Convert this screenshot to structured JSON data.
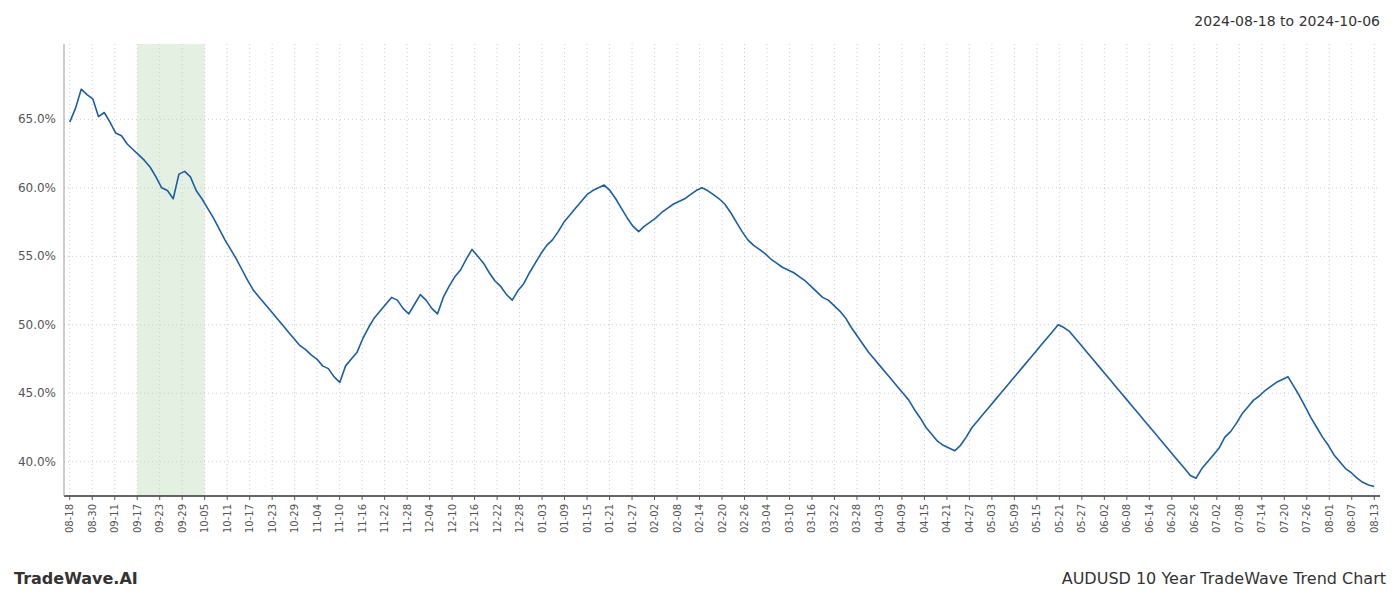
{
  "chart_data": {
    "type": "line",
    "title": "2024-08-18 to 2024-10-06",
    "annotations": [
      "TradeWave.AI",
      "AUDUSD 10 Year TradeWave Trend Chart"
    ],
    "color": "#1b5ea6",
    "grid": true,
    "ylim": [
      0.375,
      0.705
    ],
    "yticks": [
      {
        "value": 0.4,
        "label": "40.0%"
      },
      {
        "value": 0.45,
        "label": "45.0%"
      },
      {
        "value": 0.5,
        "label": "50.0%"
      },
      {
        "value": 0.55,
        "label": "55.0%"
      },
      {
        "value": 0.6,
        "label": "60.0%"
      },
      {
        "value": 0.65,
        "label": "65.0%"
      }
    ],
    "xlim": [
      -1,
      228
    ],
    "xticks": [
      {
        "value": 0,
        "label": "08-18"
      },
      {
        "value": 3.914,
        "label": "08-30"
      },
      {
        "value": 7.828,
        "label": "09-11"
      },
      {
        "value": 11.741,
        "label": "09-17"
      },
      {
        "value": 15.655,
        "label": "09-23"
      },
      {
        "value": 19.569,
        "label": "09-29"
      },
      {
        "value": 23.483,
        "label": "10-05"
      },
      {
        "value": 27.397,
        "label": "10-11"
      },
      {
        "value": 31.31,
        "label": "10-17"
      },
      {
        "value": 35.224,
        "label": "10-23"
      },
      {
        "value": 39.138,
        "label": "10-29"
      },
      {
        "value": 43.052,
        "label": "11-04"
      },
      {
        "value": 46.966,
        "label": "11-10"
      },
      {
        "value": 50.879,
        "label": "11-16"
      },
      {
        "value": 54.793,
        "label": "11-22"
      },
      {
        "value": 58.707,
        "label": "11-28"
      },
      {
        "value": 62.621,
        "label": "12-04"
      },
      {
        "value": 66.534,
        "label": "12-10"
      },
      {
        "value": 70.448,
        "label": "12-16"
      },
      {
        "value": 74.362,
        "label": "12-22"
      },
      {
        "value": 78.276,
        "label": "12-28"
      },
      {
        "value": 82.19,
        "label": "01-03"
      },
      {
        "value": 86.103,
        "label": "01-09"
      },
      {
        "value": 90.017,
        "label": "01-15"
      },
      {
        "value": 93.931,
        "label": "01-21"
      },
      {
        "value": 97.845,
        "label": "01-27"
      },
      {
        "value": 101.759,
        "label": "02-02"
      },
      {
        "value": 105.672,
        "label": "02-08"
      },
      {
        "value": 109.586,
        "label": "02-14"
      },
      {
        "value": 113.5,
        "label": "02-20"
      },
      {
        "value": 117.414,
        "label": "02-26"
      },
      {
        "value": 121.328,
        "label": "03-04"
      },
      {
        "value": 125.241,
        "label": "03-10"
      },
      {
        "value": 129.155,
        "label": "03-16"
      },
      {
        "value": 133.069,
        "label": "03-22"
      },
      {
        "value": 136.983,
        "label": "03-28"
      },
      {
        "value": 140.897,
        "label": "04-03"
      },
      {
        "value": 144.81,
        "label": "04-09"
      },
      {
        "value": 148.724,
        "label": "04-15"
      },
      {
        "value": 152.638,
        "label": "04-21"
      },
      {
        "value": 156.552,
        "label": "04-27"
      },
      {
        "value": 160.466,
        "label": "05-03"
      },
      {
        "value": 164.379,
        "label": "05-09"
      },
      {
        "value": 168.293,
        "label": "05-15"
      },
      {
        "value": 172.207,
        "label": "05-21"
      },
      {
        "value": 176.121,
        "label": "05-27"
      },
      {
        "value": 180.034,
        "label": "06-02"
      },
      {
        "value": 183.948,
        "label": "06-08"
      },
      {
        "value": 187.862,
        "label": "06-14"
      },
      {
        "value": 191.776,
        "label": "06-20"
      },
      {
        "value": 195.69,
        "label": "06-26"
      },
      {
        "value": 199.603,
        "label": "07-02"
      },
      {
        "value": 203.517,
        "label": "07-08"
      },
      {
        "value": 207.431,
        "label": "07-14"
      },
      {
        "value": 211.345,
        "label": "07-20"
      },
      {
        "value": 215.259,
        "label": "07-26"
      },
      {
        "value": 219.172,
        "label": "08-01"
      },
      {
        "value": 223.086,
        "label": "08-07"
      },
      {
        "value": 227,
        "label": "08-13"
      }
    ],
    "shade": {
      "start_label": "09-17",
      "end_label": "10-05",
      "color": "#d8ead4"
    },
    "values": [
      0.648,
      0.658,
      0.672,
      0.668,
      0.665,
      0.652,
      0.655,
      0.648,
      0.64,
      0.638,
      0.632,
      0.628,
      0.624,
      0.62,
      0.615,
      0.608,
      0.6,
      0.598,
      0.592,
      0.61,
      0.612,
      0.608,
      0.598,
      0.592,
      0.585,
      0.578,
      0.57,
      0.562,
      0.555,
      0.548,
      0.54,
      0.532,
      0.525,
      0.52,
      0.515,
      0.51,
      0.505,
      0.5,
      0.495,
      0.49,
      0.485,
      0.482,
      0.478,
      0.475,
      0.47,
      0.468,
      0.462,
      0.458,
      0.47,
      0.475,
      0.48,
      0.49,
      0.498,
      0.505,
      0.51,
      0.515,
      0.52,
      0.518,
      0.512,
      0.508,
      0.515,
      0.522,
      0.518,
      0.512,
      0.508,
      0.52,
      0.528,
      0.535,
      0.54,
      0.548,
      0.555,
      0.55,
      0.545,
      0.538,
      0.532,
      0.528,
      0.522,
      0.518,
      0.525,
      0.53,
      0.538,
      0.545,
      0.552,
      0.558,
      0.562,
      0.568,
      0.575,
      0.58,
      0.585,
      0.59,
      0.595,
      0.598,
      0.6,
      0.602,
      0.598,
      0.592,
      0.585,
      0.578,
      0.572,
      0.568,
      0.572,
      0.575,
      0.578,
      0.582,
      0.585,
      0.588,
      0.59,
      0.592,
      0.595,
      0.598,
      0.6,
      0.598,
      0.595,
      0.592,
      0.588,
      0.582,
      0.575,
      0.568,
      0.562,
      0.558,
      0.555,
      0.552,
      0.548,
      0.545,
      0.542,
      0.54,
      0.538,
      0.535,
      0.532,
      0.528,
      0.524,
      0.52,
      0.518,
      0.514,
      0.51,
      0.505,
      0.498,
      0.492,
      0.486,
      0.48,
      0.475,
      0.47,
      0.465,
      0.46,
      0.455,
      0.45,
      0.445,
      0.438,
      0.432,
      0.425,
      0.42,
      0.415,
      0.412,
      0.41,
      0.408,
      0.412,
      0.418,
      0.425,
      0.43,
      0.435,
      0.44,
      0.445,
      0.45,
      0.455,
      0.46,
      0.465,
      0.47,
      0.475,
      0.48,
      0.485,
      0.49,
      0.495,
      0.5,
      0.498,
      0.495,
      0.49,
      0.485,
      0.48,
      0.475,
      0.47,
      0.465,
      0.46,
      0.455,
      0.45,
      0.445,
      0.44,
      0.435,
      0.43,
      0.425,
      0.42,
      0.415,
      0.41,
      0.405,
      0.4,
      0.395,
      0.39,
      0.388,
      0.395,
      0.4,
      0.405,
      0.41,
      0.418,
      0.422,
      0.428,
      0.435,
      0.44,
      0.445,
      0.448,
      0.452,
      0.455,
      0.458,
      0.46,
      0.462,
      0.455,
      0.448,
      0.44,
      0.432,
      0.425,
      0.418,
      0.412,
      0.405,
      0.4,
      0.395,
      0.392,
      0.388,
      0.385,
      0.383,
      0.382
    ]
  }
}
